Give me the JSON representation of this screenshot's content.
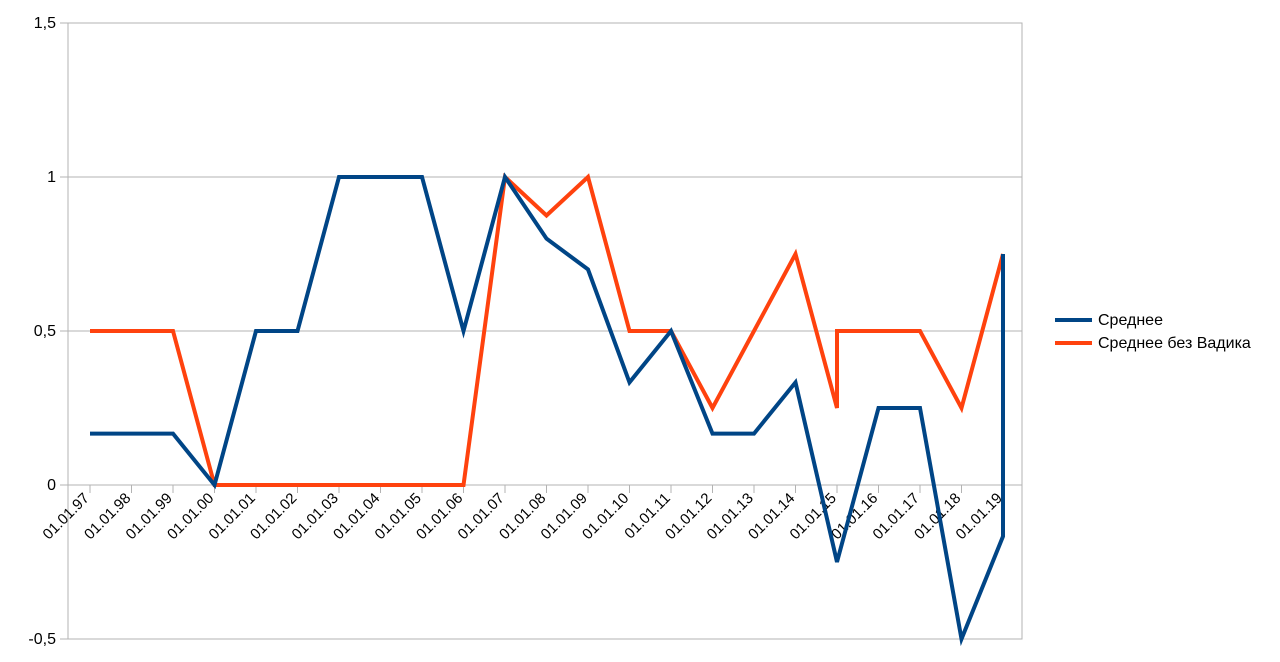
{
  "chart_data": {
    "type": "line",
    "title": "",
    "xlabel": "",
    "ylabel": "",
    "ylim": [
      -0.5,
      1.5
    ],
    "grid": true,
    "legend_position": "right",
    "y_ticks": [
      "-0,5",
      "0",
      "0,5",
      "1",
      "1,5"
    ],
    "y_tick_values": [
      -0.5,
      0,
      0.5,
      1,
      1.5
    ],
    "x_tick_labels": [
      "01.01.97",
      "01.01.98",
      "01.01.99",
      "01.01.00",
      "01.01.01",
      "01.01.02",
      "01.01.03",
      "01.01.04",
      "01.01.05",
      "01.01.06",
      "01.01.07",
      "01.01.08",
      "01.01.09",
      "01.01.10",
      "01.01.11",
      "01.01.12",
      "01.01.13",
      "01.01.14",
      "01.01.15",
      "01.01.16",
      "01.01.17",
      "01.01.18",
      "01.01.19"
    ],
    "series": [
      {
        "name": "Среднее",
        "color": "#004586",
        "points": [
          [
            "01.01.97",
            0.167
          ],
          [
            "01.01.98",
            0.167
          ],
          [
            "01.01.99",
            0.167
          ],
          [
            "01.01.00",
            0
          ],
          [
            "01.01.01",
            0.5
          ],
          [
            "01.01.02",
            0.5
          ],
          [
            "01.01.03",
            1
          ],
          [
            "01.01.04",
            1
          ],
          [
            "01.01.05",
            1
          ],
          [
            "01.01.06",
            0.5
          ],
          [
            "01.01.07",
            1
          ],
          [
            "01.01.08",
            0.8
          ],
          [
            "01.01.09",
            0.7
          ],
          [
            "01.01.10",
            0.333
          ],
          [
            "01.01.11",
            0.5
          ],
          [
            "01.01.12",
            0.167
          ],
          [
            "01.01.13",
            0.167
          ],
          [
            "01.01.14",
            0.333
          ],
          [
            "01.01.15",
            -0.25
          ],
          [
            "01.01.16",
            0.25
          ],
          [
            "01.01.17",
            0.25
          ],
          [
            "01.01.18",
            -0.5
          ],
          [
            "01.01.19",
            -0.167
          ],
          [
            "01.01.19",
            0.75
          ]
        ]
      },
      {
        "name": "Среднее без Вадика",
        "color": "#ff420e",
        "points": [
          [
            "01.01.97",
            0.5
          ],
          [
            "01.01.98",
            0.5
          ],
          [
            "01.01.99",
            0.5
          ],
          [
            "01.01.00",
            0
          ],
          [
            "01.01.01",
            0
          ],
          [
            "01.01.02",
            0
          ],
          [
            "01.01.03",
            0
          ],
          [
            "01.01.04",
            0
          ],
          [
            "01.01.05",
            0
          ],
          [
            "01.01.06",
            0
          ],
          [
            "01.01.07",
            1
          ],
          [
            "01.01.08",
            0.875
          ],
          [
            "01.01.09",
            1
          ],
          [
            "01.01.10",
            0.5
          ],
          [
            "01.01.11",
            0.5
          ],
          [
            "01.01.12",
            0.25
          ],
          [
            "01.01.13",
            0.5
          ],
          [
            "01.01.14",
            0.75
          ],
          [
            "01.01.15",
            0.25
          ],
          [
            "01.01.15",
            0.5
          ],
          [
            "01.01.16",
            0.5
          ],
          [
            "01.01.17",
            0.5
          ],
          [
            "01.01.18",
            0.25
          ],
          [
            "01.01.19",
            0.75
          ]
        ]
      }
    ]
  }
}
